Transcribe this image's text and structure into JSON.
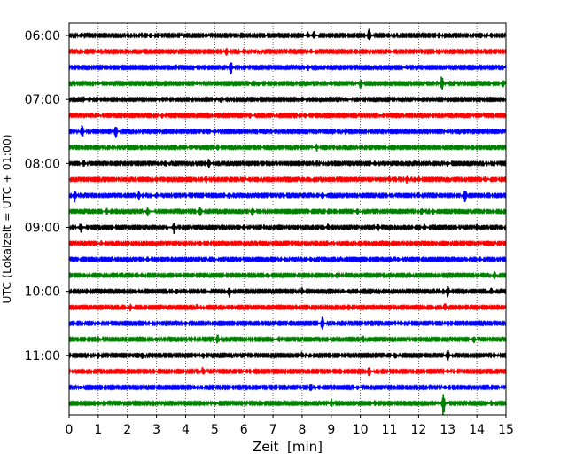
{
  "chart_data": {
    "type": "line",
    "subtype": "helicorder",
    "xlabel": "Zeit  [min]",
    "ylabel": "UTC (Lokalzeit = UTC + 01:00)",
    "xlim": [
      0,
      15
    ],
    "x_ticks": [
      0,
      1,
      2,
      3,
      4,
      5,
      6,
      7,
      8,
      9,
      10,
      11,
      12,
      13,
      14,
      15
    ],
    "x_tick_labels": [
      "0",
      "1",
      "2",
      "3",
      "4",
      "5",
      "6",
      "7",
      "8",
      "9",
      "10",
      "11",
      "12",
      "13",
      "14",
      "15"
    ],
    "y_tick_labels": [
      "06:00",
      "07:00",
      "08:00",
      "09:00",
      "10:00",
      "11:00"
    ],
    "grid": "x-dotted",
    "trace_colors": [
      "#000000",
      "#ff0000",
      "#0000ff",
      "#008000"
    ],
    "minutes_per_trace": 15,
    "traces": [
      {
        "start": "06:00",
        "events": [
          [
            0.4,
            0.35
          ],
          [
            2.8,
            0.3
          ],
          [
            4.7,
            0.3
          ],
          [
            8.2,
            0.4
          ],
          [
            8.4,
            0.5
          ],
          [
            10.3,
            1.0
          ],
          [
            12.7,
            0.35
          ],
          [
            14.5,
            0.3
          ]
        ]
      },
      {
        "start": "06:15",
        "events": [
          [
            1.0,
            0.3
          ],
          [
            5.4,
            0.5
          ],
          [
            6.0,
            0.3
          ],
          [
            8.3,
            0.35
          ],
          [
            11.0,
            0.3
          ],
          [
            12.7,
            0.4
          ]
        ]
      },
      {
        "start": "06:30",
        "events": [
          [
            1.3,
            0.3
          ],
          [
            5.55,
            0.9
          ],
          [
            8.2,
            0.4
          ],
          [
            11.6,
            0.3
          ]
        ]
      },
      {
        "start": "06:45",
        "events": [
          [
            1.0,
            0.3
          ],
          [
            4.4,
            0.3
          ],
          [
            6.5,
            0.3
          ],
          [
            9.0,
            0.35
          ],
          [
            10.0,
            0.6
          ],
          [
            12.8,
            1.0
          ],
          [
            14.9,
            0.5
          ]
        ]
      },
      {
        "start": "07:00",
        "events": [
          [
            0.5,
            0.3
          ],
          [
            3.1,
            0.3
          ],
          [
            5.2,
            0.3
          ],
          [
            8.0,
            0.3
          ],
          [
            9.5,
            0.35
          ],
          [
            12.0,
            0.3
          ]
        ]
      },
      {
        "start": "07:15",
        "events": [
          [
            1.0,
            0.25
          ],
          [
            3.2,
            0.3
          ],
          [
            6.2,
            0.3
          ],
          [
            8.1,
            0.35
          ],
          [
            10.8,
            0.3
          ],
          [
            12.5,
            0.3
          ]
        ]
      },
      {
        "start": "07:30",
        "events": [
          [
            0.45,
            0.9
          ],
          [
            1.6,
            1.0
          ],
          [
            5.0,
            0.4
          ],
          [
            7.1,
            0.35
          ],
          [
            9.5,
            0.4
          ],
          [
            13.0,
            0.3
          ]
        ]
      },
      {
        "start": "07:45",
        "events": [
          [
            1.5,
            0.3
          ],
          [
            5.1,
            0.4
          ],
          [
            8.5,
            0.4
          ],
          [
            10.0,
            0.3
          ],
          [
            14.0,
            0.35
          ]
        ]
      },
      {
        "start": "08:00",
        "events": [
          [
            0.5,
            0.45
          ],
          [
            3.3,
            0.4
          ],
          [
            4.8,
            0.6
          ],
          [
            8.5,
            0.35
          ],
          [
            10.5,
            0.4
          ],
          [
            13.0,
            0.4
          ]
        ]
      },
      {
        "start": "08:15",
        "events": [
          [
            3.0,
            0.4
          ],
          [
            4.7,
            0.5
          ],
          [
            6.2,
            0.4
          ],
          [
            11.0,
            0.4
          ],
          [
            11.6,
            0.45
          ],
          [
            12.0,
            0.4
          ],
          [
            14.3,
            0.4
          ]
        ]
      },
      {
        "start": "08:30",
        "events": [
          [
            0.2,
            0.8
          ],
          [
            2.4,
            0.5
          ],
          [
            3.0,
            0.4
          ],
          [
            5.5,
            0.4
          ],
          [
            8.7,
            0.45
          ],
          [
            12.0,
            0.4
          ],
          [
            13.6,
            0.9
          ]
        ]
      },
      {
        "start": "08:45",
        "events": [
          [
            1.3,
            0.4
          ],
          [
            2.7,
            0.7
          ],
          [
            4.5,
            0.7
          ],
          [
            6.3,
            0.6
          ],
          [
            9.9,
            0.4
          ],
          [
            12.1,
            0.45
          ],
          [
            12.5,
            0.4
          ]
        ]
      },
      {
        "start": "09:00",
        "events": [
          [
            0.4,
            0.6
          ],
          [
            3.6,
            0.7
          ],
          [
            6.0,
            0.4
          ],
          [
            8.9,
            0.5
          ],
          [
            10.6,
            0.45
          ],
          [
            12.2,
            0.4
          ],
          [
            14.0,
            0.35
          ]
        ]
      },
      {
        "start": "09:15",
        "events": [
          [
            1.1,
            0.3
          ],
          [
            4.5,
            0.3
          ],
          [
            7.0,
            0.3
          ],
          [
            9.0,
            0.3
          ],
          [
            11.6,
            0.3
          ]
        ]
      },
      {
        "start": "09:30",
        "events": [
          [
            2.7,
            0.3
          ],
          [
            5.2,
            0.3
          ],
          [
            8.3,
            0.35
          ],
          [
            11.3,
            0.3
          ],
          [
            14.1,
            0.3
          ]
        ]
      },
      {
        "start": "09:45",
        "events": [
          [
            2.5,
            0.3
          ],
          [
            3.8,
            0.3
          ],
          [
            6.8,
            0.3
          ],
          [
            9.2,
            0.35
          ],
          [
            11.7,
            0.3
          ],
          [
            14.6,
            0.5
          ]
        ]
      },
      {
        "start": "10:00",
        "events": [
          [
            0.6,
            0.3
          ],
          [
            3.7,
            0.35
          ],
          [
            5.5,
            0.7
          ],
          [
            8.0,
            0.45
          ],
          [
            9.4,
            0.35
          ],
          [
            13.0,
            0.8
          ],
          [
            14.5,
            0.4
          ]
        ]
      },
      {
        "start": "10:15",
        "events": [
          [
            2.1,
            0.5
          ],
          [
            4.4,
            0.4
          ],
          [
            5.6,
            0.3
          ],
          [
            7.8,
            0.4
          ],
          [
            9.6,
            0.4
          ],
          [
            12.9,
            0.5
          ]
        ]
      },
      {
        "start": "10:30",
        "events": [
          [
            1.0,
            0.3
          ],
          [
            4.0,
            0.3
          ],
          [
            8.7,
            1.0
          ],
          [
            11.4,
            0.35
          ],
          [
            13.0,
            0.35
          ]
        ]
      },
      {
        "start": "10:45",
        "events": [
          [
            1.0,
            0.3
          ],
          [
            3.0,
            0.3
          ],
          [
            4.2,
            0.35
          ],
          [
            5.1,
            0.6
          ],
          [
            7.2,
            0.35
          ],
          [
            10.1,
            0.4
          ],
          [
            13.9,
            0.5
          ]
        ]
      },
      {
        "start": "11:00",
        "events": [
          [
            1.0,
            0.4
          ],
          [
            2.5,
            0.45
          ],
          [
            4.6,
            0.4
          ],
          [
            8.0,
            0.4
          ],
          [
            11.2,
            0.45
          ],
          [
            13.0,
            0.9
          ],
          [
            14.6,
            0.35
          ]
        ]
      },
      {
        "start": "11:15",
        "events": [
          [
            2.9,
            0.3
          ],
          [
            4.6,
            0.6
          ],
          [
            6.1,
            0.3
          ],
          [
            10.3,
            0.8
          ],
          [
            13.0,
            0.3
          ]
        ]
      },
      {
        "start": "11:30",
        "events": [
          [
            0.4,
            0.25
          ],
          [
            4.3,
            0.3
          ],
          [
            8.3,
            0.5
          ],
          [
            9.9,
            0.3
          ],
          [
            12.9,
            0.3
          ]
        ]
      },
      {
        "start": "11:45",
        "events": [
          [
            1.0,
            0.3
          ],
          [
            5.0,
            0.3
          ],
          [
            9.0,
            0.5
          ],
          [
            10.5,
            0.4
          ],
          [
            12.85,
            1.6
          ],
          [
            14.5,
            0.3
          ]
        ]
      }
    ]
  }
}
